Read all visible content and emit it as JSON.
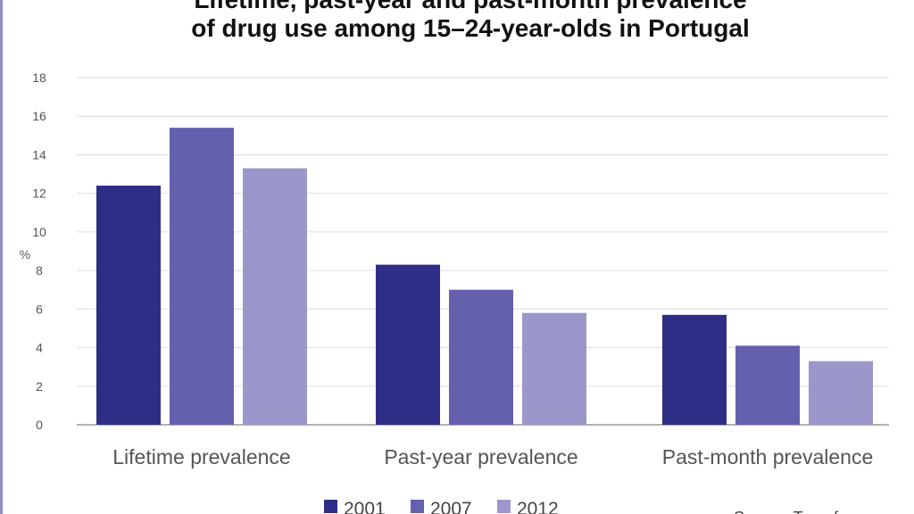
{
  "chart_data": {
    "type": "bar",
    "title_line1": "Lifetime, past-year and past-month prevalence",
    "title_line2": "of drug use among 15–24-year-olds in Portugal",
    "ylabel": "%",
    "ylim": [
      0,
      18
    ],
    "yticks": [
      0,
      2,
      4,
      6,
      8,
      10,
      12,
      14,
      16,
      18
    ],
    "grid": true,
    "legend_position": "bottom",
    "categories": [
      "Lifetime prevalence",
      "Past-year prevalence",
      "Past-month prevalence"
    ],
    "series": [
      {
        "name": "2001",
        "color": "#2e2e86",
        "values": [
          12.4,
          8.3,
          5.7
        ]
      },
      {
        "name": "2007",
        "color": "#6560ad",
        "values": [
          15.4,
          7.0,
          4.1
        ]
      },
      {
        "name": "2012",
        "color": "#9c97cb",
        "values": [
          13.3,
          5.8,
          3.3
        ]
      }
    ],
    "source": "Source: Transform"
  }
}
